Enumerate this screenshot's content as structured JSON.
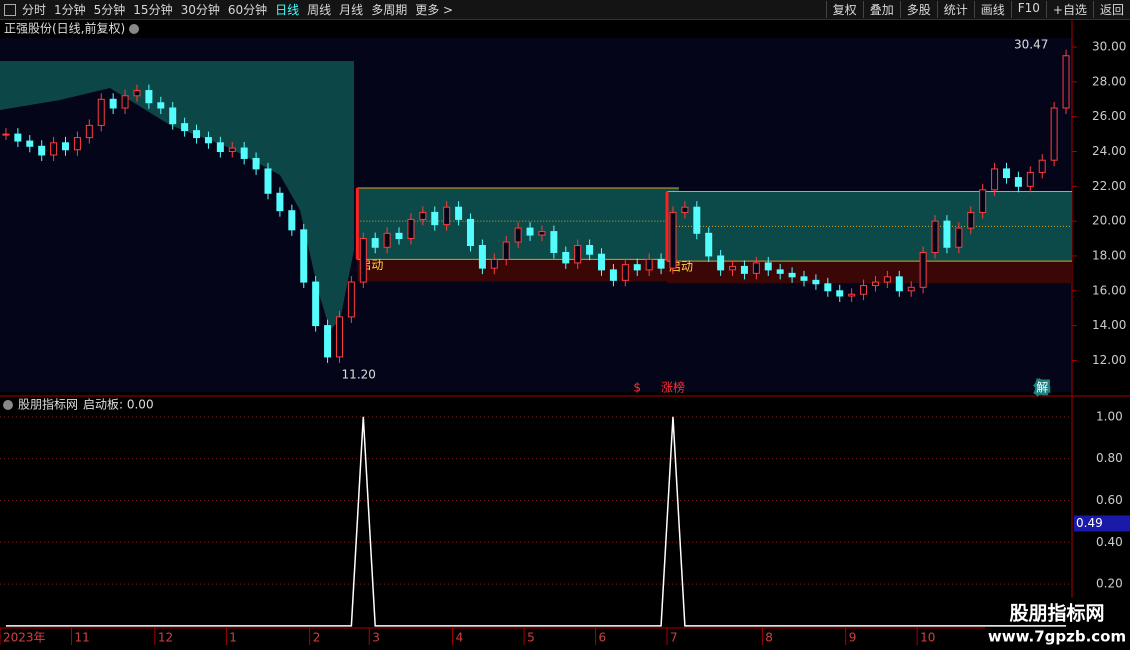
{
  "toolbar": {
    "periods": [
      "分时",
      "1分钟",
      "5分钟",
      "15分钟",
      "30分钟",
      "60分钟",
      "日线",
      "周线",
      "月线",
      "多周期",
      "更多 >"
    ],
    "active": 6,
    "right_buttons": [
      "复权",
      "叠加",
      "多股",
      "统计",
      "画线",
      "F10",
      "+自选",
      "返回"
    ]
  },
  "price_chart": {
    "type": "candlestick",
    "title": "正强股份(日线,前复权)",
    "x": [
      "2023年",
      null,
      null,
      null,
      null,
      null,
      "11",
      null,
      null,
      null,
      null,
      null,
      null,
      "12",
      null,
      null,
      null,
      null,
      null,
      "1",
      null,
      null,
      null,
      null,
      null,
      null,
      "2",
      null,
      null,
      null,
      null,
      "3",
      null,
      null,
      null,
      null,
      null,
      null,
      "4",
      null,
      null,
      null,
      null,
      null,
      "5",
      null,
      null,
      null,
      null,
      null,
      "6",
      null,
      null,
      null,
      null,
      null,
      "7",
      null,
      null,
      null,
      null,
      null,
      null,
      null,
      "8",
      null,
      null,
      null,
      null,
      null,
      null,
      "9",
      null,
      null,
      null,
      null,
      null,
      "10",
      null,
      null,
      null,
      null,
      null,
      null,
      null,
      null,
      null,
      null,
      null,
      null
    ],
    "closes": [
      25.0,
      24.6,
      24.3,
      23.8,
      24.5,
      24.1,
      24.8,
      25.5,
      27.0,
      26.5,
      27.2,
      27.5,
      26.8,
      26.5,
      25.6,
      25.2,
      24.8,
      24.5,
      24.0,
      24.2,
      23.6,
      23.0,
      21.6,
      20.6,
      19.5,
      16.5,
      14.0,
      12.2,
      14.5,
      16.5,
      19.0,
      18.5,
      19.3,
      19.0,
      20.1,
      20.5,
      19.8,
      20.8,
      20.1,
      18.6,
      17.3,
      17.8,
      18.8,
      19.6,
      19.2,
      19.4,
      18.2,
      17.6,
      18.6,
      18.1,
      17.2,
      16.6,
      17.5,
      17.2,
      17.8,
      17.3,
      20.5,
      20.8,
      19.3,
      18.0,
      17.2,
      17.4,
      17.0,
      17.6,
      17.2,
      17.0,
      16.8,
      16.6,
      16.4,
      16.0,
      15.7,
      15.8,
      16.3,
      16.5,
      16.8,
      16.0,
      16.2,
      18.2,
      20.0,
      18.5,
      19.6,
      20.5,
      21.8,
      23.0,
      22.5,
      22.0,
      22.8,
      23.5,
      26.5,
      29.5
    ],
    "ylim": [
      10.3,
      30.52
    ],
    "yticks": [
      {
        "value": 12,
        "label": "12.00"
      },
      {
        "value": 14,
        "label": "14.00"
      },
      {
        "value": 16,
        "label": "16.00"
      },
      {
        "value": 18,
        "label": "18.00"
      },
      {
        "value": 20,
        "label": "20.00"
      },
      {
        "value": 22,
        "label": "22.00"
      },
      {
        "value": 24,
        "label": "24.00"
      },
      {
        "value": 26,
        "label": "26.00"
      },
      {
        "value": 28,
        "label": "28.00"
      },
      {
        "value": 30,
        "label": "30.00"
      }
    ],
    "high_label": "30.47",
    "low_label": "11.20",
    "zones": [
      {
        "start": 30,
        "end": 56,
        "top": 21.9,
        "mid": 20.0,
        "bottom": 17.8,
        "label": "启动"
      },
      {
        "start": 56,
        "end": 89,
        "top": 21.7,
        "mid": 19.7,
        "bottom": 17.7,
        "label": "启动"
      }
    ],
    "markers": [
      {
        "index": 53,
        "text": "$"
      },
      {
        "index": 56,
        "text": "涨榜"
      },
      {
        "index": 87,
        "text": "解"
      }
    ]
  },
  "indicator": {
    "type": "line",
    "title": "股朋指标网",
    "name": "启动板: 0.00",
    "values": [
      0,
      0,
      0,
      0,
      0,
      0,
      0,
      0,
      0,
      0,
      0,
      0,
      0,
      0,
      0,
      0,
      0,
      0,
      0,
      0,
      0,
      0,
      0,
      0,
      0,
      0,
      0,
      0,
      0,
      0,
      1,
      0,
      0,
      0,
      0,
      0,
      0,
      0,
      0,
      0,
      0,
      0,
      0,
      0,
      0,
      0,
      0,
      0,
      0,
      0,
      0,
      0,
      0,
      0,
      0,
      0,
      1,
      0,
      0,
      0,
      0,
      0,
      0,
      0,
      0,
      0,
      0,
      0,
      0,
      0,
      0,
      0,
      0,
      0,
      0,
      0,
      0,
      0,
      0,
      0,
      0,
      0,
      0,
      0,
      0,
      0,
      0,
      0,
      0,
      0
    ],
    "ylim": [
      -0.01,
      1.09
    ],
    "yticks": [
      {
        "value": 0.2,
        "label": "0.20"
      },
      {
        "value": 0.4,
        "label": "0.40"
      },
      {
        "value": 0.6,
        "label": "0.60"
      },
      {
        "value": 0.8,
        "label": "0.80"
      },
      {
        "value": 1,
        "label": "1.00"
      }
    ],
    "cursor": {
      "value": 0.49,
      "label": "0.49"
    }
  },
  "watermark": {
    "title": "股朋指标网",
    "url": "www.7gpzb.com"
  }
}
